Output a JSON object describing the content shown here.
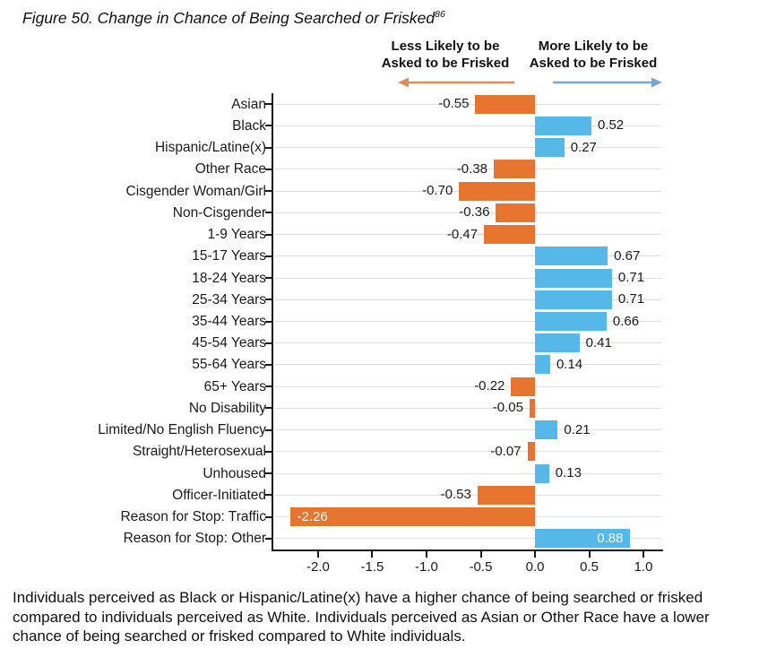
{
  "title": {
    "text": "Figure 50. Change in Chance of Being Searched or Frisked",
    "footnote_marker": "86"
  },
  "direction_labels": {
    "less_lines": [
      "Less Likely to be",
      "Asked to be Frisked"
    ],
    "more_lines": [
      "More Likely to be",
      "Asked to be Frisked"
    ]
  },
  "colors": {
    "positive_bar": "#55B8E8",
    "negative_bar": "#E7742F",
    "less_arrow": "#DF8C5D",
    "more_arrow": "#76A5D8",
    "gridline": "#E0E0E0",
    "axis": "#1A1A1A",
    "inside_label": "#FFFFFF",
    "text": "#1A1A1A"
  },
  "chart_data": {
    "type": "bar",
    "orientation": "horizontal",
    "title": "Figure 50. Change in Chance of Being Searched or Frisked",
    "categories": [
      "Asian",
      "Black",
      "Hispanic/Latine(x)",
      "Other Race",
      "Cisgender Woman/Girl",
      "Non-Cisgender",
      "1-9 Years",
      "15-17 Years",
      "18-24 Years",
      "25-34 Years",
      "35-44 Years",
      "45-54 Years",
      "55-64 Years",
      "65+ Years",
      "No Disability",
      "Limited/No English Fluency",
      "Straight/Heterosexual",
      "Unhoused",
      "Officer-Initiated",
      "Reason for Stop: Traffic",
      "Reason for Stop: Other"
    ],
    "values": [
      -0.55,
      0.52,
      0.27,
      -0.38,
      -0.7,
      -0.36,
      -0.47,
      0.67,
      0.71,
      0.71,
      0.66,
      0.41,
      0.14,
      -0.22,
      -0.05,
      0.21,
      -0.07,
      0.13,
      -0.53,
      -2.26,
      0.88
    ],
    "value_labels": [
      "-0.55",
      "0.52",
      "0.27",
      "-0.38",
      "-0.70",
      "-0.36",
      "-0.47",
      "0.67",
      "0.71",
      "0.71",
      "0.66",
      "0.41",
      "0.14",
      "-0.22",
      "-0.05",
      "0.21",
      "-0.07",
      "0.13",
      "-0.53",
      "-2.26",
      "0.88"
    ],
    "label_inside": [
      false,
      false,
      false,
      false,
      false,
      false,
      false,
      false,
      false,
      false,
      false,
      false,
      false,
      false,
      false,
      false,
      false,
      false,
      false,
      true,
      true
    ],
    "xlim": [
      -2.413,
      1.165
    ],
    "xticks": [
      -2.0,
      -1.5,
      -1.0,
      -0.5,
      0.0,
      0.5,
      1.0
    ],
    "xtick_labels": [
      "-2.0",
      "-1.5",
      "-1.0",
      "-0.5",
      "0.0",
      "0.5",
      "1.0"
    ],
    "grid": true,
    "legend": null
  },
  "caption_lines": [
    "Individuals perceived as Black or Hispanic/Latine(x) have a higher chance of being searched or frisked",
    "compared to individuals perceived as White. Individuals perceived as Asian or Other Race have a lower",
    "chance of being searched or frisked compared to White individuals."
  ]
}
